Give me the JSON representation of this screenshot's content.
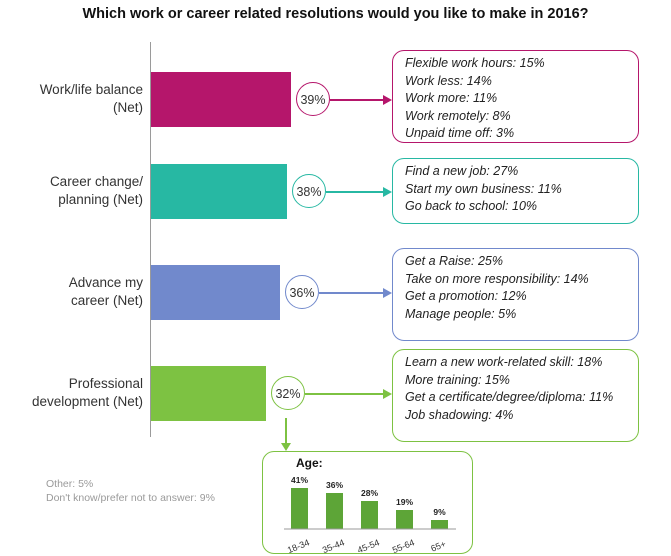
{
  "chart_data": {
    "type": "bar",
    "title": "Which work or career related resolutions would you like to make in 2016?",
    "categories": [
      {
        "label": "Work/life balance\n(Net)",
        "value": 39,
        "value_label": "39%",
        "color": "#b5166b",
        "details": [
          "Flexible work hours: 15%",
          "Work less: 14%",
          "Work more: 11%",
          "Work remotely: 8%",
          "Unpaid time off: 3%"
        ]
      },
      {
        "label": "Career change/\nplanning (Net)",
        "value": 38,
        "value_label": "38%",
        "color": "#27b8a3",
        "details": [
          "Find a new job: 27%",
          "Start my own business: 11%",
          "Go back to school: 10%"
        ]
      },
      {
        "label": "Advance my\ncareer (Net)",
        "value": 36,
        "value_label": "36%",
        "color": "#7189cc",
        "details": [
          "Get a Raise: 25%",
          "Take on more responsibility: 14%",
          "Get a promotion: 12%",
          "Manage people: 5%"
        ]
      },
      {
        "label": "Professional\ndevelopment (Net)",
        "value": 32,
        "value_label": "32%",
        "color": "#7dc242",
        "details": [
          "Learn a new work-related skill: 18%",
          "More training: 15%",
          "Get a certificate/degree/diploma: 11%",
          "Job shadowing: 4%"
        ]
      }
    ],
    "footnotes": [
      "Other: 5%",
      "Don't know/prefer not to answer: 9%"
    ],
    "age_chart": {
      "type": "bar",
      "title": "Age:",
      "categories": [
        "18-34",
        "35-44",
        "45-54",
        "55-64",
        "65+"
      ],
      "values": [
        41,
        36,
        28,
        19,
        9
      ],
      "value_labels": [
        "41%",
        "36%",
        "28%",
        "19%",
        "9%"
      ],
      "color": "#5da537"
    }
  }
}
